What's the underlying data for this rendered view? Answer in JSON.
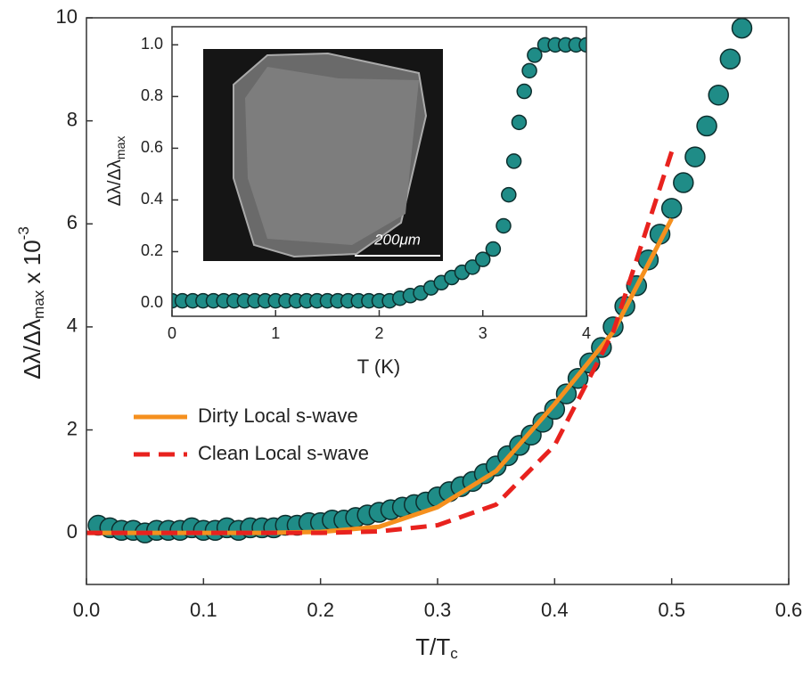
{
  "chart_data": [
    {
      "type": "scatter",
      "xlabel": [
        "T/T",
        "c"
      ],
      "ylabel": [
        "Δλ/Δλ",
        "max",
        " x 10",
        "-3"
      ],
      "xlim": [
        0,
        0.6
      ],
      "ylim": [
        -1,
        10
      ],
      "xticks": [
        {
          "value": 0,
          "label": "0.0"
        },
        0.1,
        0.2,
        0.3,
        0.4,
        0.5,
        0.6
      ],
      "yticks": [
        0,
        2,
        4,
        6,
        8,
        10
      ],
      "color": "#1f8c87",
      "x": [
        0.01,
        0.02,
        0.03,
        0.04,
        0.05,
        0.06,
        0.07,
        0.08,
        0.09,
        0.1,
        0.11,
        0.12,
        0.13,
        0.14,
        0.15,
        0.16,
        0.17,
        0.18,
        0.19,
        0.2,
        0.21,
        0.22,
        0.23,
        0.24,
        0.25,
        0.26,
        0.27,
        0.28,
        0.29,
        0.3,
        0.31,
        0.32,
        0.33,
        0.34,
        0.35,
        0.36,
        0.37,
        0.38,
        0.39,
        0.4,
        0.41,
        0.42,
        0.43,
        0.44,
        0.45,
        0.46,
        0.47,
        0.48,
        0.49,
        0.5,
        0.51,
        0.52,
        0.53,
        0.54,
        0.55,
        0.56
      ],
      "values": [
        0.15,
        0.1,
        0.05,
        0.05,
        0.0,
        0.05,
        0.05,
        0.05,
        0.1,
        0.05,
        0.05,
        0.1,
        0.05,
        0.1,
        0.1,
        0.1,
        0.15,
        0.15,
        0.2,
        0.2,
        0.25,
        0.25,
        0.3,
        0.35,
        0.4,
        0.45,
        0.5,
        0.55,
        0.6,
        0.7,
        0.8,
        0.9,
        1.0,
        1.15,
        1.3,
        1.5,
        1.7,
        1.9,
        2.15,
        2.4,
        2.7,
        3.0,
        3.3,
        3.6,
        4.0,
        4.4,
        4.8,
        5.3,
        5.8,
        6.3,
        6.8,
        7.3,
        7.9,
        8.5,
        9.2,
        9.8
      ],
      "series": [
        {
          "name": "Dirty Local s-wave",
          "color": "#f5901e",
          "dashed": false,
          "x": [
            0,
            0.05,
            0.1,
            0.15,
            0.2,
            0.25,
            0.3,
            0.35,
            0.4,
            0.45,
            0.5
          ],
          "values": [
            0,
            0,
            0,
            0,
            0.02,
            0.12,
            0.5,
            1.2,
            2.5,
            3.9,
            6.1
          ]
        },
        {
          "name": "Clean Local s-wave",
          "color": "#e8221e",
          "dashed": true,
          "x": [
            0,
            0.05,
            0.1,
            0.15,
            0.2,
            0.25,
            0.3,
            0.35,
            0.4,
            0.45,
            0.5
          ],
          "values": [
            0,
            0,
            0,
            0,
            0,
            0.03,
            0.15,
            0.55,
            1.7,
            3.9,
            7.4
          ]
        }
      ],
      "legend_loc": "center left"
    },
    {
      "type": "scatter",
      "xlabel": [
        "T (K)"
      ],
      "ylabel": [
        "Δλ/Δλ",
        "max"
      ],
      "xlim": [
        0,
        4
      ],
      "ylim": [
        -0.05,
        1.07
      ],
      "xticks": [
        0,
        1,
        2,
        3,
        4
      ],
      "yticks": [
        {
          "value": 0,
          "label": "0.0"
        },
        0.2,
        0.4,
        0.6,
        0.8,
        {
          "value": 1,
          "label": "1.0"
        }
      ],
      "color": "#1f8c87",
      "image_label": "200μm",
      "x": [
        0,
        0.1,
        0.2,
        0.3,
        0.4,
        0.5,
        0.6,
        0.7,
        0.8,
        0.9,
        1.0,
        1.1,
        1.2,
        1.3,
        1.4,
        1.5,
        1.6,
        1.7,
        1.8,
        1.9,
        2.0,
        2.1,
        2.2,
        2.3,
        2.4,
        2.5,
        2.6,
        2.7,
        2.8,
        2.9,
        3.0,
        3.1,
        3.2,
        3.25,
        3.3,
        3.35,
        3.4,
        3.45,
        3.5,
        3.6,
        3.7,
        3.8,
        3.9,
        4.0
      ],
      "values": [
        0.01,
        0.01,
        0.01,
        0.01,
        0.01,
        0.01,
        0.01,
        0.01,
        0.01,
        0.01,
        0.01,
        0.01,
        0.01,
        0.01,
        0.01,
        0.01,
        0.01,
        0.01,
        0.01,
        0.01,
        0.01,
        0.01,
        0.02,
        0.03,
        0.04,
        0.06,
        0.08,
        0.1,
        0.12,
        0.14,
        0.17,
        0.21,
        0.3,
        0.42,
        0.55,
        0.7,
        0.82,
        0.9,
        0.96,
        1.0,
        1.0,
        1.0,
        1.0,
        1.0
      ]
    }
  ]
}
